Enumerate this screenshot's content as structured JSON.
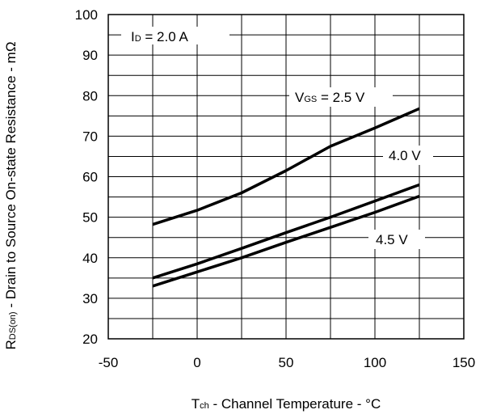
{
  "chart_data": {
    "type": "line",
    "xlabel": {
      "main": "T",
      "sub": "ch",
      "rest": " - Channel Temperature - °C"
    },
    "ylabel": {
      "main": "R",
      "sub": "DS(on)",
      "rest": " - Drain to Source On-state Resistance - mΩ"
    },
    "xlim": [
      -50,
      150
    ],
    "ylim": [
      20,
      100
    ],
    "x_ticks": [
      -50,
      0,
      50,
      100,
      150
    ],
    "y_ticks": [
      20,
      30,
      40,
      50,
      60,
      70,
      80,
      90,
      100
    ],
    "grid": true,
    "series": [
      {
        "name": "VGS = 2.5 V",
        "x": [
          -25,
          0,
          25,
          50,
          75,
          100,
          125
        ],
        "y": [
          48.2,
          51.7,
          56.0,
          61.5,
          67.5,
          72.0,
          76.8
        ]
      },
      {
        "name": "4.0 V",
        "x": [
          -25,
          0,
          25,
          50,
          75,
          100,
          125
        ],
        "y": [
          35.0,
          38.5,
          42.3,
          46.2,
          50.0,
          54.0,
          58.0
        ]
      },
      {
        "name": "4.5 V",
        "x": [
          -25,
          0,
          25,
          50,
          75,
          100,
          125
        ],
        "y": [
          33.0,
          36.5,
          40.0,
          43.8,
          47.5,
          51.2,
          55.2
        ]
      }
    ],
    "annotations": {
      "id_condition": {
        "main": "I",
        "sub": "D",
        "rest": " = 2.0 A"
      },
      "vgs_25": {
        "main": "V",
        "sub": "GS",
        "rest": " = 2.5 V"
      },
      "vgs_40": "4.0 V",
      "vgs_45": "4.5 V"
    }
  }
}
